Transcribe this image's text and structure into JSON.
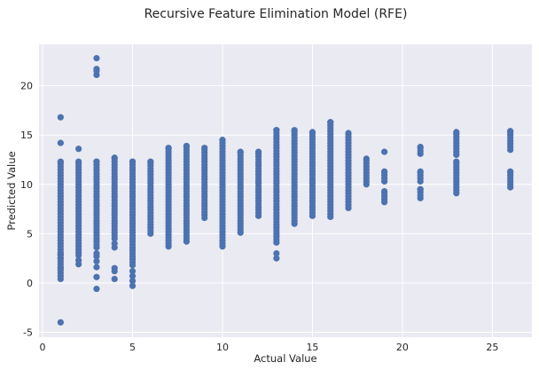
{
  "chart_data": {
    "type": "scatter",
    "title": "Recursive Feature Elimination Model (RFE)",
    "xlabel": "Actual Value",
    "ylabel": "Predicted Value",
    "xlim": [
      -0.2,
      27.2
    ],
    "ylim": [
      -5.5,
      24.2
    ],
    "xticks": [
      0,
      5,
      10,
      15,
      20,
      25
    ],
    "yticks": [
      -5,
      0,
      5,
      10,
      15,
      20
    ],
    "grid": true,
    "marker_color": "#4c72b0",
    "background_color": "#eaeaf2",
    "columns": [
      {
        "x": 1,
        "ranges": [
          [
            0.4,
            12.3
          ]
        ],
        "extra": [
          -4.0,
          1.5,
          2.5,
          2.9,
          14.2,
          16.8
        ]
      },
      {
        "x": 2,
        "ranges": [
          [
            2.8,
            12.3
          ]
        ],
        "extra": [
          1.9,
          2.3,
          13.6
        ]
      },
      {
        "x": 3,
        "ranges": [
          [
            3.6,
            12.3
          ]
        ],
        "extra": [
          -0.6,
          0.6,
          1.6,
          2.2,
          2.7,
          3.0,
          21.1,
          21.5,
          21.7,
          22.8
        ]
      },
      {
        "x": 4,
        "ranges": [
          [
            4.5,
            12.7
          ]
        ],
        "extra": [
          0.4,
          1.2,
          1.5,
          3.6,
          4.0
        ]
      },
      {
        "x": 5,
        "ranges": [
          [
            1.8,
            12.3
          ]
        ],
        "extra": [
          -0.3,
          0.2,
          0.7,
          1.2
        ]
      },
      {
        "x": 6,
        "ranges": [
          [
            5.0,
            12.3
          ]
        ],
        "extra": []
      },
      {
        "x": 7,
        "ranges": [
          [
            3.7,
            13.7
          ]
        ],
        "extra": []
      },
      {
        "x": 8,
        "ranges": [
          [
            4.2,
            13.9
          ]
        ],
        "extra": []
      },
      {
        "x": 9,
        "ranges": [
          [
            6.6,
            13.7
          ]
        ],
        "extra": []
      },
      {
        "x": 10,
        "ranges": [
          [
            3.7,
            14.5
          ]
        ],
        "extra": []
      },
      {
        "x": 11,
        "ranges": [
          [
            5.1,
            13.3
          ]
        ],
        "extra": []
      },
      {
        "x": 12,
        "ranges": [
          [
            6.8,
            13.3
          ]
        ],
        "extra": []
      },
      {
        "x": 13,
        "ranges": [
          [
            4.1,
            15.5
          ]
        ],
        "extra": [
          2.5,
          3.0
        ]
      },
      {
        "x": 14,
        "ranges": [
          [
            6.0,
            15.5
          ]
        ],
        "extra": []
      },
      {
        "x": 15,
        "ranges": [
          [
            6.8,
            15.3
          ]
        ],
        "extra": []
      },
      {
        "x": 16,
        "ranges": [
          [
            6.7,
            16.3
          ]
        ],
        "extra": []
      },
      {
        "x": 17,
        "ranges": [
          [
            7.6,
            15.2
          ]
        ],
        "extra": []
      },
      {
        "x": 18,
        "ranges": [
          [
            10.0,
            12.6
          ]
        ],
        "extra": []
      },
      {
        "x": 19,
        "ranges": [
          [
            8.2,
            9.3
          ],
          [
            10.3,
            11.3
          ]
        ],
        "extra": [
          13.3
        ]
      },
      {
        "x": 21,
        "ranges": [
          [
            8.6,
            9.5
          ],
          [
            10.3,
            11.3
          ],
          [
            13.1,
            13.8
          ]
        ],
        "extra": []
      },
      {
        "x": 23,
        "ranges": [
          [
            9.1,
            12.3
          ],
          [
            13.0,
            15.3
          ]
        ],
        "extra": []
      },
      {
        "x": 26,
        "ranges": [
          [
            9.7,
            11.3
          ],
          [
            13.5,
            15.4
          ]
        ],
        "extra": []
      }
    ]
  }
}
